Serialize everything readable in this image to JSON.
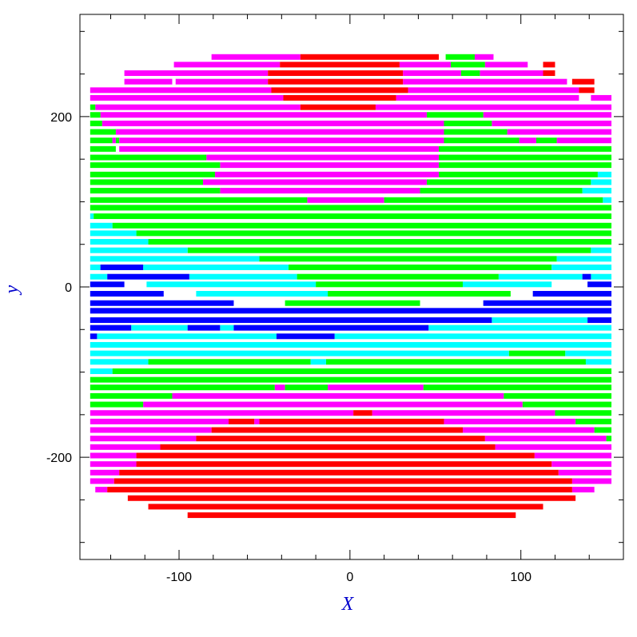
{
  "chart_data": {
    "type": "strip",
    "xlabel": "X",
    "ylabel": "y",
    "xlim": [
      -158,
      160
    ],
    "ylim": [
      -320,
      320
    ],
    "xticks": [
      -100,
      0,
      100
    ],
    "yticks": [
      -200,
      0,
      200
    ],
    "xminorticks": [
      -140,
      -120,
      -80,
      -60,
      -40,
      -20,
      20,
      40,
      60,
      80,
      120,
      140
    ],
    "yminorticks": [
      -300,
      -250,
      -150,
      -100,
      -50,
      50,
      100,
      150,
      250,
      300
    ],
    "series": [
      {
        "color": "#ff00ff",
        "segments": [
          [
            270,
            -81,
            -29
          ],
          [
            270,
            73,
            84
          ],
          [
            261,
            -103,
            -41
          ],
          [
            261,
            29,
            59
          ],
          [
            261,
            79,
            104
          ],
          [
            251,
            -132,
            -48
          ],
          [
            251,
            31,
            65
          ],
          [
            251,
            76,
            113
          ],
          [
            241,
            -132,
            -104
          ],
          [
            241,
            -102,
            -48
          ],
          [
            241,
            31,
            127
          ],
          [
            231,
            -152,
            -46
          ],
          [
            231,
            34,
            134
          ],
          [
            222,
            -152,
            -39
          ],
          [
            222,
            27,
            134
          ],
          [
            222,
            141,
            153
          ],
          [
            211,
            -149,
            -29
          ],
          [
            211,
            15,
            153
          ],
          [
            202,
            -146,
            45
          ],
          [
            202,
            78,
            153
          ],
          [
            192,
            -145,
            55
          ],
          [
            192,
            83,
            153
          ],
          [
            182,
            -137,
            55
          ],
          [
            182,
            92,
            153
          ],
          [
            172,
            -139,
            -137
          ],
          [
            172,
            -135,
            55
          ],
          [
            172,
            99,
            109
          ],
          [
            172,
            121,
            153
          ],
          [
            162,
            -135,
            52
          ],
          [
            152,
            -84,
            52
          ],
          [
            143,
            -76,
            52
          ],
          [
            132,
            -79,
            52
          ],
          [
            123,
            -86,
            45
          ],
          [
            113,
            -76,
            41
          ],
          [
            102,
            -25,
            20
          ],
          [
            -118,
            -44,
            -38
          ],
          [
            -118,
            -13,
            43
          ],
          [
            -128,
            -104,
            90
          ],
          [
            -138,
            -121,
            101
          ],
          [
            -148,
            -152,
            2
          ],
          [
            -148,
            13,
            120
          ],
          [
            -158,
            -152,
            -71
          ],
          [
            -158,
            -56,
            -53
          ],
          [
            -158,
            55,
            132
          ],
          [
            -168,
            -152,
            -81
          ],
          [
            -168,
            66,
            143
          ],
          [
            -178,
            -152,
            -90
          ],
          [
            -178,
            79,
            150
          ],
          [
            -188,
            -152,
            -111
          ],
          [
            -188,
            85,
            153
          ],
          [
            -198,
            -152,
            -125
          ],
          [
            -198,
            108,
            153
          ],
          [
            -208,
            -152,
            -125
          ],
          [
            -208,
            118,
            153
          ],
          [
            -218,
            -152,
            -135
          ],
          [
            -218,
            122,
            153
          ],
          [
            -228,
            -152,
            -138
          ],
          [
            -228,
            130,
            153
          ],
          [
            -238,
            -149,
            -142
          ],
          [
            -238,
            130,
            143
          ]
        ]
      },
      {
        "color": "#ff0000",
        "segments": [
          [
            270,
            -29,
            52
          ],
          [
            261,
            -41,
            29
          ],
          [
            261,
            113,
            120
          ],
          [
            251,
            -48,
            31
          ],
          [
            251,
            113,
            120
          ],
          [
            241,
            -48,
            31
          ],
          [
            241,
            130,
            143
          ],
          [
            231,
            -46,
            34
          ],
          [
            231,
            134,
            143
          ],
          [
            222,
            -39,
            27
          ],
          [
            211,
            -29,
            15
          ],
          [
            -148,
            2,
            13
          ],
          [
            -158,
            -71,
            -56
          ],
          [
            -158,
            -53,
            55
          ],
          [
            -168,
            -81,
            66
          ],
          [
            -178,
            -90,
            79
          ],
          [
            -188,
            -111,
            85
          ],
          [
            -198,
            -125,
            108
          ],
          [
            -208,
            -125,
            118
          ],
          [
            -218,
            -135,
            122
          ],
          [
            -228,
            -138,
            130
          ],
          [
            -238,
            -142,
            130
          ],
          [
            -248,
            -130,
            132
          ],
          [
            -258,
            -118,
            113
          ],
          [
            -268,
            -95,
            97
          ]
        ]
      },
      {
        "color": "#00ff00",
        "segments": [
          [
            270,
            56,
            73
          ],
          [
            261,
            59,
            79
          ],
          [
            251,
            65,
            76
          ],
          [
            211,
            -152,
            -149
          ],
          [
            202,
            -152,
            -146
          ],
          [
            202,
            45,
            78
          ],
          [
            192,
            -152,
            -145
          ],
          [
            192,
            55,
            83
          ],
          [
            182,
            -152,
            -137
          ],
          [
            182,
            55,
            92
          ],
          [
            172,
            -152,
            -139
          ],
          [
            172,
            -137,
            -135
          ],
          [
            172,
            55,
            99
          ],
          [
            172,
            109,
            121
          ],
          [
            162,
            -152,
            -137
          ],
          [
            162,
            52,
            153
          ],
          [
            152,
            -152,
            -84
          ],
          [
            152,
            52,
            153
          ],
          [
            143,
            -152,
            -76
          ],
          [
            143,
            52,
            153
          ],
          [
            132,
            -152,
            -79
          ],
          [
            132,
            52,
            145
          ],
          [
            123,
            -152,
            -86
          ],
          [
            123,
            45,
            141
          ],
          [
            113,
            -152,
            -76
          ],
          [
            113,
            41,
            136
          ],
          [
            102,
            -152,
            -25
          ],
          [
            102,
            20,
            148
          ],
          [
            93,
            -152,
            153
          ],
          [
            83,
            -150,
            153
          ],
          [
            72,
            -139,
            153
          ],
          [
            63,
            -125,
            153
          ],
          [
            53,
            -118,
            153
          ],
          [
            43,
            -95,
            141
          ],
          [
            33,
            -53,
            121
          ],
          [
            23,
            -36,
            118
          ],
          [
            12,
            -31,
            87
          ],
          [
            3,
            -20,
            66
          ],
          [
            -8,
            -13,
            94
          ],
          [
            -19,
            -38,
            41
          ],
          [
            -78,
            93,
            126
          ],
          [
            -88,
            -118,
            -23
          ],
          [
            -88,
            -14,
            138
          ],
          [
            -99,
            -139,
            153
          ],
          [
            -109,
            -152,
            153
          ],
          [
            -118,
            -152,
            -44
          ],
          [
            -118,
            -38,
            -13
          ],
          [
            -118,
            43,
            153
          ],
          [
            -128,
            -152,
            -104
          ],
          [
            -128,
            90,
            153
          ],
          [
            -138,
            -152,
            -121
          ],
          [
            -138,
            101,
            153
          ],
          [
            -148,
            120,
            153
          ],
          [
            -158,
            132,
            153
          ],
          [
            -168,
            143,
            153
          ],
          [
            -178,
            150,
            153
          ]
        ]
      },
      {
        "color": "#00ffff",
        "segments": [
          [
            132,
            145,
            153
          ],
          [
            123,
            141,
            153
          ],
          [
            113,
            136,
            153
          ],
          [
            102,
            148,
            153
          ],
          [
            83,
            -152,
            -150
          ],
          [
            72,
            -152,
            -139
          ],
          [
            63,
            -152,
            -125
          ],
          [
            53,
            -152,
            -118
          ],
          [
            43,
            -152,
            -95
          ],
          [
            43,
            141,
            153
          ],
          [
            33,
            -152,
            -53
          ],
          [
            33,
            121,
            153
          ],
          [
            23,
            -152,
            -146
          ],
          [
            23,
            -121,
            -36
          ],
          [
            23,
            118,
            153
          ],
          [
            12,
            -152,
            -142
          ],
          [
            12,
            -94,
            -31
          ],
          [
            12,
            87,
            136
          ],
          [
            12,
            141,
            153
          ],
          [
            3,
            -119,
            -20
          ],
          [
            3,
            66,
            118
          ],
          [
            -8,
            -90,
            -13
          ],
          [
            -39,
            83,
            139
          ],
          [
            -48,
            -128,
            -95
          ],
          [
            -48,
            -76,
            -68
          ],
          [
            -48,
            46,
            153
          ],
          [
            -58,
            -148,
            -43
          ],
          [
            -58,
            -9,
            153
          ],
          [
            -68,
            -152,
            153
          ],
          [
            -78,
            -152,
            93
          ],
          [
            -78,
            126,
            153
          ],
          [
            -88,
            -152,
            -118
          ],
          [
            -88,
            -23,
            -14
          ],
          [
            -88,
            138,
            153
          ],
          [
            -99,
            -152,
            -139
          ]
        ]
      },
      {
        "color": "#0000ff",
        "segments": [
          [
            23,
            -146,
            -121
          ],
          [
            12,
            -142,
            -94
          ],
          [
            12,
            136,
            141
          ],
          [
            3,
            -152,
            -132
          ],
          [
            3,
            139,
            153
          ],
          [
            -8,
            -152,
            -109
          ],
          [
            -8,
            107,
            153
          ],
          [
            -19,
            -152,
            -68
          ],
          [
            -19,
            78,
            153
          ],
          [
            -28,
            -152,
            153
          ],
          [
            -39,
            -152,
            83
          ],
          [
            -39,
            139,
            153
          ],
          [
            -48,
            -152,
            -128
          ],
          [
            -48,
            -95,
            -76
          ],
          [
            -48,
            -68,
            46
          ],
          [
            -58,
            -152,
            -148
          ],
          [
            -58,
            -43,
            -9
          ]
        ]
      }
    ]
  }
}
